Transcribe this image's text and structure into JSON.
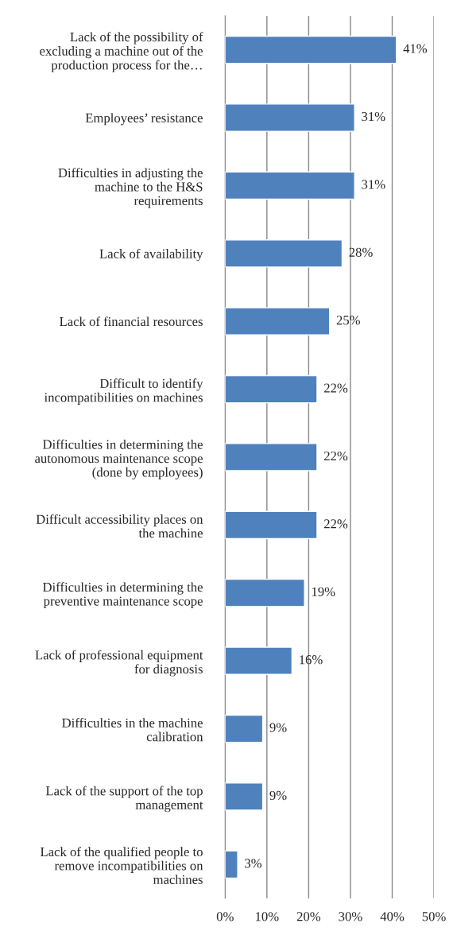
{
  "chart_data": {
    "type": "bar",
    "orientation": "horizontal",
    "categories": [
      "Lack of the possibility of\nexcluding a machine out of the\nproduction process for the…",
      "Employees’ resistance",
      "Difficulties in adjusting the\nmachine to the H&S\nrequirements",
      "Lack of availability",
      "Lack of financial resources",
      "Difficult to identify\nincompatibilities on machines",
      "Difficulties in determining the\nautonomous maintenance scope\n(done by employees)",
      "Difficult accessibility places on\nthe machine",
      "Difficulties in determining the\npreventive maintenance scope",
      "Lack of professional equipment\nfor diagnosis",
      "Difficulties in the machine\ncalibration",
      "Lack of the support of the top\nmanagement",
      "Lack of the qualified people to\nremove incompatibilities on\nmachines"
    ],
    "values": [
      41,
      31,
      31,
      28,
      25,
      22,
      22,
      22,
      19,
      16,
      9,
      9,
      3
    ],
    "value_labels": [
      "41%",
      "31%",
      "31%",
      "28%",
      "25%",
      "22%",
      "22%",
      "22%",
      "19%",
      "16%",
      "9%",
      "9%",
      "3%"
    ],
    "color": "#4f81bd",
    "xlim": [
      0,
      50
    ],
    "xticks": [
      {
        "value": 0,
        "label": "0%"
      },
      {
        "value": 10,
        "label": "10%"
      },
      {
        "value": 20,
        "label": "20%"
      },
      {
        "value": 30,
        "label": "30%"
      },
      {
        "value": 40,
        "label": "40%"
      },
      {
        "value": 50,
        "label": "50%"
      }
    ],
    "grid": "x",
    "legend": false
  }
}
